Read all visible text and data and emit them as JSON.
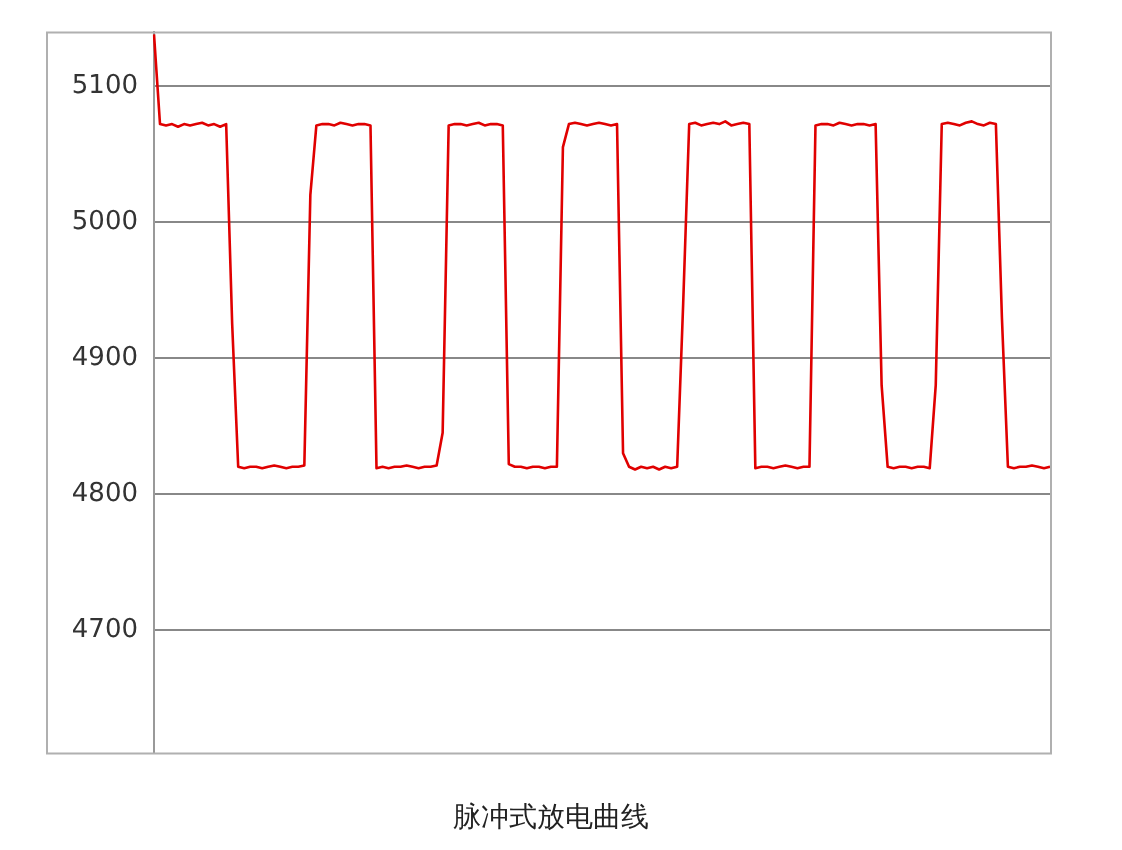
{
  "chart_data": {
    "type": "line",
    "annotations": [
      "脉冲式放电曲线"
    ],
    "categories": [
      null,
      null,
      null,
      null,
      null,
      null,
      null,
      null,
      null,
      null,
      null,
      null,
      null,
      null,
      null,
      null,
      null,
      null,
      null,
      null,
      null,
      null,
      null,
      null,
      null,
      null,
      null,
      null,
      null,
      null,
      null,
      null,
      null,
      null,
      null,
      null,
      null,
      null,
      null,
      null,
      null,
      null,
      null,
      null,
      null,
      null,
      null,
      null,
      null,
      null,
      null,
      null,
      null,
      null,
      null,
      null,
      null,
      null,
      null,
      null,
      null,
      null,
      null,
      null,
      null,
      null,
      null,
      null,
      null,
      null,
      null,
      null,
      null,
      null,
      null,
      null,
      null,
      null,
      null,
      null,
      null,
      null,
      null,
      null,
      null,
      null,
      null,
      null,
      null,
      null,
      null,
      null,
      null,
      null,
      null,
      null,
      null,
      null,
      null,
      null,
      null,
      null,
      null,
      null,
      null,
      null,
      null,
      null,
      null,
      null,
      null,
      null,
      null,
      null,
      null,
      null,
      null,
      null,
      null,
      null,
      null,
      null,
      null,
      null,
      null,
      null,
      null,
      null,
      null,
      null,
      null,
      null,
      null,
      null,
      null,
      null,
      null,
      null,
      null,
      null,
      null,
      null,
      null,
      null,
      null,
      null,
      null,
      null,
      null,
      null
    ],
    "series": [
      {
        "color": "#e00000",
        "values": [
          5138,
          5072,
          5071,
          5072,
          5070,
          5072,
          5071,
          5072,
          5073,
          5071,
          5072,
          5070,
          5072,
          4925,
          4820,
          4819,
          4820,
          4820,
          4819,
          4820,
          4821,
          4820,
          4819,
          4820,
          4820,
          4821,
          5020,
          5071,
          5072,
          5072,
          5071,
          5073,
          5072,
          5071,
          5072,
          5072,
          5071,
          4819,
          4820,
          4819,
          4820,
          4820,
          4821,
          4820,
          4819,
          4820,
          4820,
          4821,
          4845,
          5071,
          5072,
          5072,
          5071,
          5072,
          5073,
          5071,
          5072,
          5072,
          5071,
          4822,
          4820,
          4820,
          4819,
          4820,
          4820,
          4819,
          4820,
          4820,
          5055,
          5072,
          5073,
          5072,
          5071,
          5072,
          5073,
          5072,
          5071,
          5072,
          4830,
          4820,
          4818,
          4820,
          4819,
          4820,
          4818,
          4820,
          4819,
          4820,
          4940,
          5072,
          5073,
          5071,
          5072,
          5073,
          5072,
          5074,
          5071,
          5072,
          5073,
          5072,
          4819,
          4820,
          4820,
          4819,
          4820,
          4821,
          4820,
          4819,
          4820,
          4820,
          5071,
          5072,
          5072,
          5071,
          5073,
          5072,
          5071,
          5072,
          5072,
          5071,
          5072,
          4880,
          4820,
          4819,
          4820,
          4820,
          4819,
          4820,
          4820,
          4819,
          4880,
          5072,
          5073,
          5072,
          5071,
          5073,
          5074,
          5072,
          5071,
          5073,
          5072,
          4930,
          4820,
          4819,
          4820,
          4820,
          4821,
          4820,
          4819,
          4820
        ]
      }
    ],
    "ylim": [
      4610,
      5140
    ],
    "yticks": [
      4700,
      4800,
      4900,
      5000,
      5100
    ],
    "grid": "y",
    "legend": false,
    "marker": "none",
    "line_style": "solid",
    "tick_labels": "y"
  }
}
